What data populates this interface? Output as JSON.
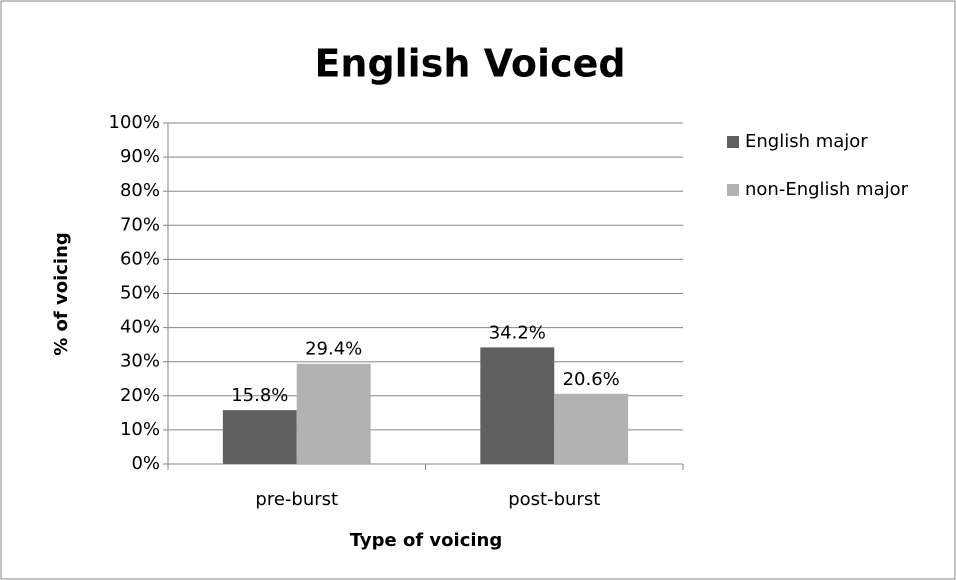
{
  "chart_data": {
    "type": "bar",
    "title": "English Voiced",
    "x_label": "Type of voicing",
    "y_label": "% of voicing",
    "categories": [
      "pre-burst",
      "post-burst"
    ],
    "series": [
      {
        "name": "English major",
        "color": "#5f5f5f",
        "values": [
          15.8,
          34.2
        ],
        "value_labels": [
          "15.8%",
          "34.2%"
        ]
      },
      {
        "name": "non-English major",
        "color": "#b2b2b2",
        "values": [
          29.4,
          20.6
        ],
        "value_labels": [
          "29.4%",
          "20.6%"
        ]
      }
    ],
    "ylim": [
      0,
      100
    ],
    "yticks": [
      {
        "value": 0,
        "label": "0%"
      },
      {
        "value": 10,
        "label": "10%"
      },
      {
        "value": 20,
        "label": "20%"
      },
      {
        "value": 30,
        "label": "30%"
      },
      {
        "value": 40,
        "label": "40%"
      },
      {
        "value": 50,
        "label": "50%"
      },
      {
        "value": 60,
        "label": "60%"
      },
      {
        "value": 70,
        "label": "70%"
      },
      {
        "value": 80,
        "label": "80%"
      },
      {
        "value": 90,
        "label": "90%"
      },
      {
        "value": 100,
        "label": "100%"
      }
    ],
    "grid": true,
    "legend": "right"
  }
}
